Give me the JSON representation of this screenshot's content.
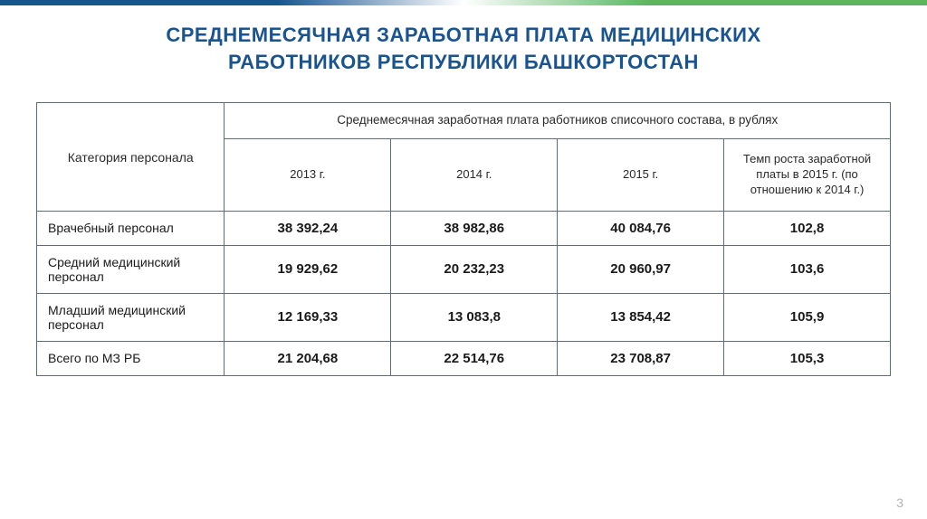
{
  "title": {
    "line1": "СРЕДНЕМЕСЯЧНАЯ ЗАРАБОТНАЯ ПЛАТА МЕДИЦИНСКИХ",
    "line2": "РАБОТНИКОВ РЕСПУБЛИКИ БАШКОРТОСТАН"
  },
  "table": {
    "category_header": "Категория персонала",
    "super_header": "Среднемесячная заработная плата работников списочного состава, в рублях",
    "columns": {
      "y2013": "2013 г.",
      "y2014": "2014 г.",
      "y2015": "2015 г.",
      "growth": "Темп роста заработной платы в 2015 г. (по отношению к 2014 г.)"
    },
    "rows": [
      {
        "label": "Врачебный персонал",
        "y2013": "38 392,24",
        "y2014": "38 982,86",
        "y2015": "40 084,76",
        "growth": "102,8"
      },
      {
        "label": "Средний медицинский персонал",
        "y2013": "19 929,62",
        "y2014": "20 232,23",
        "y2015": "20 960,97",
        "growth": "103,6"
      },
      {
        "label": "Младший медицинский персонал",
        "y2013": "12 169,33",
        "y2014": "13 083,8",
        "y2015": "13 854,42",
        "growth": "105,9"
      },
      {
        "label": "Всего по  МЗ РБ",
        "y2013": "21 204,68",
        "y2014": "22 514,76",
        "y2015": "23 708,87",
        "growth": "105,3"
      }
    ]
  },
  "page_number": "3",
  "style": {
    "title_color": "#1a5490",
    "border_color": "#5e6b78",
    "accent_blue": "#1a5490",
    "accent_green": "#5bb563",
    "background": "#ffffff",
    "title_fontsize": 22,
    "header_fontsize": 13.5,
    "cell_fontsize": 15
  }
}
